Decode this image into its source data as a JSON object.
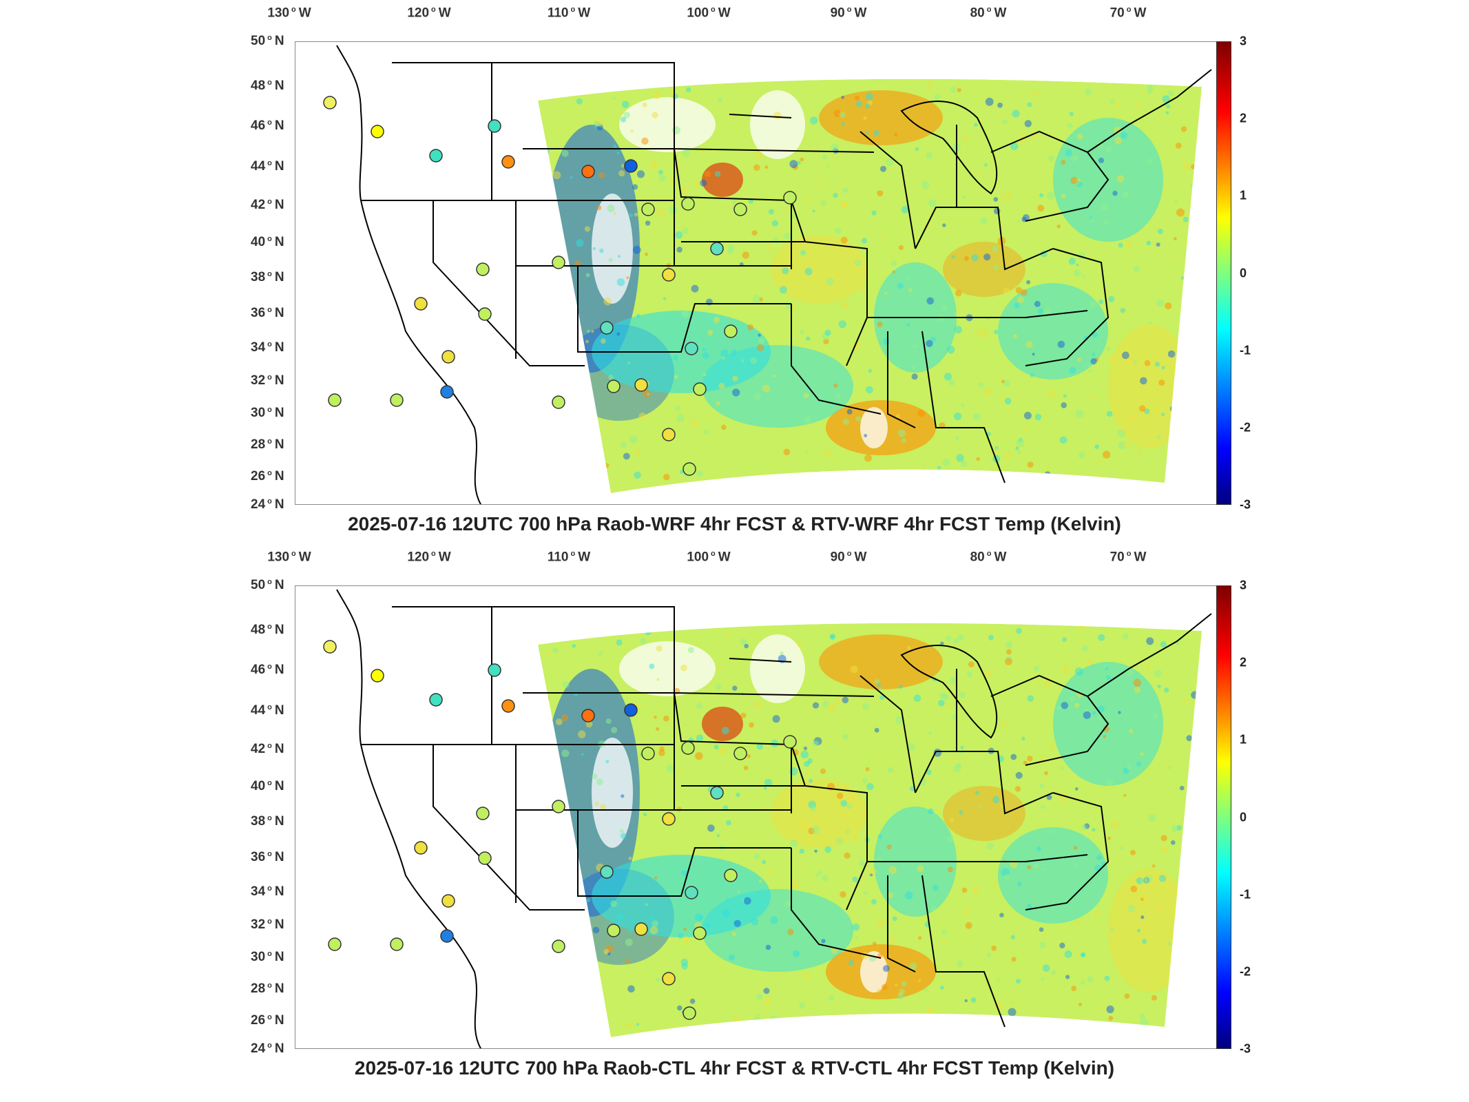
{
  "panels": [
    {
      "title": "2025-07-16 12UTC 700 hPa Raob-WRF 4hr FCST & RTV-WRF 4hr FCST Temp (Kelvin)"
    },
    {
      "title": "2025-07-16 12UTC 700 hPa Raob-CTL 4hr FCST & RTV-CTL 4hr FCST Temp (Kelvin)"
    }
  ],
  "map": {
    "lon_labels": [
      {
        "deg": "130",
        "dir": "W",
        "lon": -130
      },
      {
        "deg": "120",
        "dir": "W",
        "lon": -120
      },
      {
        "deg": "110",
        "dir": "W",
        "lon": -110
      },
      {
        "deg": "100",
        "dir": "W",
        "lon": -100
      },
      {
        "deg": "90",
        "dir": "W",
        "lon": -90
      },
      {
        "deg": "80",
        "dir": "W",
        "lon": -80
      },
      {
        "deg": "70",
        "dir": "W",
        "lon": -70
      }
    ],
    "lat_labels": [
      {
        "deg": "50",
        "dir": "N",
        "lat": 50
      },
      {
        "deg": "48",
        "dir": "N",
        "lat": 48
      },
      {
        "deg": "46",
        "dir": "N",
        "lat": 46
      },
      {
        "deg": "44",
        "dir": "N",
        "lat": 44
      },
      {
        "deg": "42",
        "dir": "N",
        "lat": 42
      },
      {
        "deg": "40",
        "dir": "N",
        "lat": 40
      },
      {
        "deg": "38",
        "dir": "N",
        "lat": 38
      },
      {
        "deg": "36",
        "dir": "N",
        "lat": 36
      },
      {
        "deg": "34",
        "dir": "N",
        "lat": 34
      },
      {
        "deg": "32",
        "dir": "N",
        "lat": 32
      },
      {
        "deg": "30",
        "dir": "N",
        "lat": 30
      },
      {
        "deg": "28",
        "dir": "N",
        "lat": 28
      },
      {
        "deg": "26",
        "dir": "N",
        "lat": 26
      },
      {
        "deg": "24",
        "dir": "N",
        "lat": 24
      }
    ],
    "colorbar": {
      "min": -3,
      "max": 3,
      "ticks": [
        "3",
        "2",
        "1",
        "0",
        "-1",
        "-2",
        "-3"
      ],
      "colormap": "jet"
    },
    "colors": {
      "field_base": "#c8f060",
      "cold": "#1060e0",
      "warm": "#ff8c00",
      "hot": "#e02000",
      "cyan": "#30e0e0"
    }
  }
}
